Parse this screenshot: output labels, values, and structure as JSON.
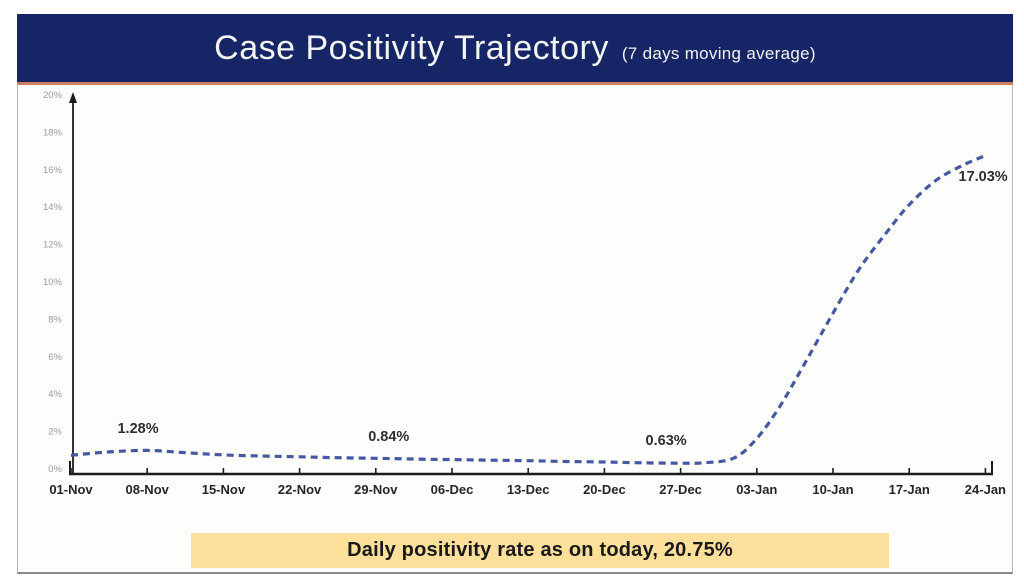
{
  "header": {
    "title": "Case Positivity Trajectory",
    "subtitle": "(7 days moving average)"
  },
  "banner": {
    "text": "Daily positivity rate as on today, 20.75%"
  },
  "chart_data": {
    "type": "line",
    "title": "Case Positivity Trajectory",
    "subtitle": "7 days moving average",
    "xlabel": "",
    "ylabel": "",
    "ylim": [
      0,
      20
    ],
    "grid": false,
    "legend": "none",
    "line_color": "#4558a2",
    "line_style": "dashed",
    "x_tick_labels": [
      "01-Nov",
      "08-Nov",
      "15-Nov",
      "22-Nov",
      "29-Nov",
      "06-Dec",
      "13-Dec",
      "20-Dec",
      "27-Dec",
      "03-Jan",
      "10-Jan",
      "17-Jan",
      "24-Jan"
    ],
    "y_ticks": [
      {
        "v": 0,
        "label": "0%"
      },
      {
        "v": 2,
        "label": "2%"
      },
      {
        "v": 4,
        "label": "4%"
      },
      {
        "v": 6,
        "label": "6%"
      },
      {
        "v": 8,
        "label": "8%"
      },
      {
        "v": 10,
        "label": "10%"
      },
      {
        "v": 12,
        "label": "12%"
      },
      {
        "v": 14,
        "label": "14%"
      },
      {
        "v": 16,
        "label": "16%"
      },
      {
        "v": 18,
        "label": "18%"
      },
      {
        "v": 20,
        "label": "20%"
      }
    ],
    "series": [
      {
        "name": "case-positivity-7dma",
        "points": [
          [
            0,
            1.0
          ],
          [
            0.5,
            1.18
          ],
          [
            1,
            1.26
          ],
          [
            1.5,
            1.14
          ],
          [
            2,
            1.02
          ],
          [
            2.5,
            0.96
          ],
          [
            3,
            0.92
          ],
          [
            3.5,
            0.87
          ],
          [
            4,
            0.84
          ],
          [
            4.5,
            0.8
          ],
          [
            5,
            0.77
          ],
          [
            5.5,
            0.74
          ],
          [
            6,
            0.71
          ],
          [
            6.5,
            0.67
          ],
          [
            7,
            0.64
          ],
          [
            7.5,
            0.6
          ],
          [
            8,
            0.58
          ],
          [
            8.3,
            0.6
          ],
          [
            8.7,
            0.85
          ],
          [
            9,
            1.9
          ],
          [
            9.3,
            3.6
          ],
          [
            9.6,
            5.7
          ],
          [
            10,
            8.6
          ],
          [
            10.35,
            11.0
          ],
          [
            10.7,
            12.9
          ],
          [
            11,
            14.4
          ],
          [
            11.35,
            15.7
          ],
          [
            11.7,
            16.5
          ],
          [
            12,
            17.03
          ]
        ]
      }
    ],
    "annotations": [
      {
        "text": "1.28%",
        "week": 0.88,
        "value": 2.46
      },
      {
        "text": "0.84%",
        "week": 4.17,
        "value": 2.03
      },
      {
        "text": "0.63%",
        "week": 7.81,
        "value": 1.82
      },
      {
        "text": "17.03%",
        "week": 11.97,
        "value": 15.94
      }
    ]
  }
}
